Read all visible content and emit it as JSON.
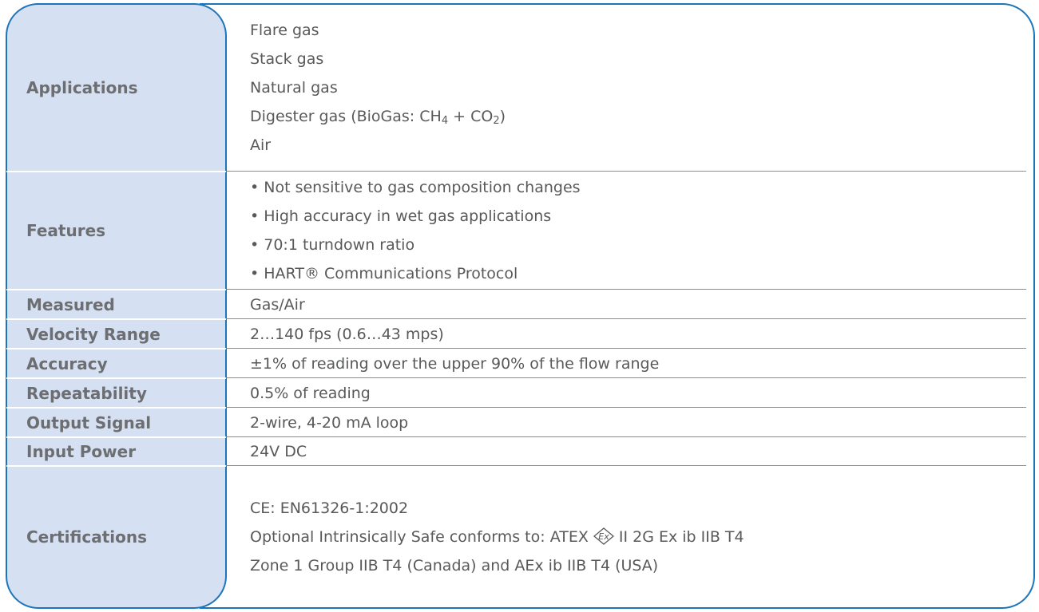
{
  "rows": [
    {
      "label": "Applications",
      "value": [
        "Flare gas",
        "Stack gas",
        "Natural gas",
        [
          "Digester gas (BioGas: CH",
          "4",
          " + CO",
          "2",
          ")"
        ],
        "Air"
      ]
    },
    {
      "label": "Features",
      "value": [
        "• Not sensitive to gas composition changes",
        "• High accuracy in wet gas applications",
        "• 70:1 turndown ratio",
        "• HART® Communications Protocol"
      ]
    },
    {
      "label": "Measured",
      "value": "Gas/Air"
    },
    {
      "label": "Velocity Range",
      "value": "2…140 fps (0.6…43 mps)"
    },
    {
      "label": "Accuracy",
      "value": "±1% of reading over the upper 90% of the flow range"
    },
    {
      "label": "Repeatability",
      "value": "0.5% of reading"
    },
    {
      "label": "Output Signal",
      "value": "2-wire, 4-20 mA loop"
    },
    {
      "label": "Input Power",
      "value": "24V DC"
    },
    {
      "label": "Certifications",
      "value": [
        "CE: EN61326-1:2002",
        [
          "Optional Intrinsically Safe conforms to: ATEX",
          "Ex",
          "II 2G Ex ib IIB T4"
        ],
        "Zone 1 Group IIB T4 (Canada) and AEx ib IIB T4 (USA)"
      ]
    }
  ]
}
